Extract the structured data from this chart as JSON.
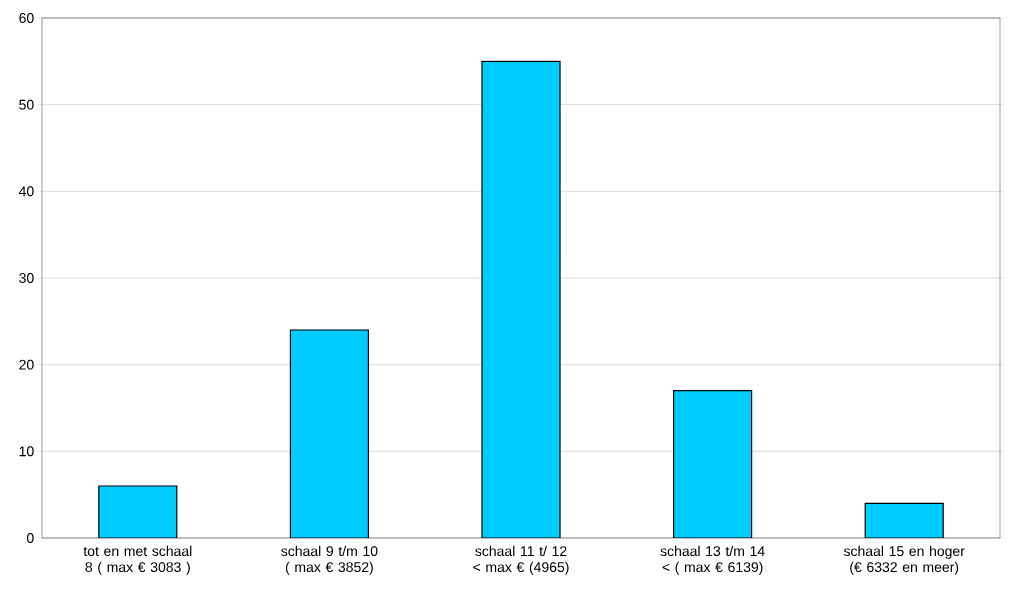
{
  "chart_data": {
    "type": "bar",
    "categories": [
      "tot en met schaal 8 ( max € 3083 )",
      "schaal 9 t/m 10 ( max € 3852)",
      "schaal 11 t/ 12 < max € (4965)",
      "schaal 13 t/m 14 < ( max € 6139)",
      "schaal 15 en hoger (€ 6332 en meer)"
    ],
    "values": [
      6,
      24,
      55,
      17,
      4
    ],
    "color": "#00ccff",
    "ylim": [
      0,
      60
    ],
    "yticks": [
      0,
      10,
      20,
      30,
      40,
      50,
      60
    ],
    "grid": "y"
  }
}
